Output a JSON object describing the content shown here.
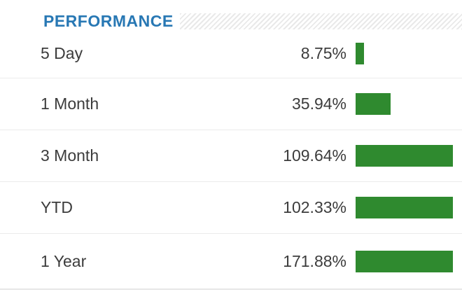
{
  "header": {
    "title": "PERFORMANCE"
  },
  "chart_data": {
    "type": "bar",
    "orientation": "horizontal",
    "title": "PERFORMANCE",
    "categories": [
      "5 Day",
      "1 Month",
      "3 Month",
      "YTD",
      "1 Year"
    ],
    "values": [
      8.75,
      35.94,
      109.64,
      102.33,
      171.88
    ],
    "value_labels": [
      "8.75%",
      "35.94%",
      "109.64%",
      "102.33%",
      "171.88%"
    ],
    "bar_axis_max": 100,
    "bar_clamped_at_max": true,
    "legend": "none",
    "grid": "off",
    "bar_color": "#2F8A2F"
  },
  "colors": {
    "accent_blue": "#2878B4",
    "bar_green": "#2F8A2F",
    "text": "#3C3C3C",
    "separator": "#EBEBEB",
    "hatch_stripe": "#E9E9E9",
    "background": "#FFFFFF"
  }
}
